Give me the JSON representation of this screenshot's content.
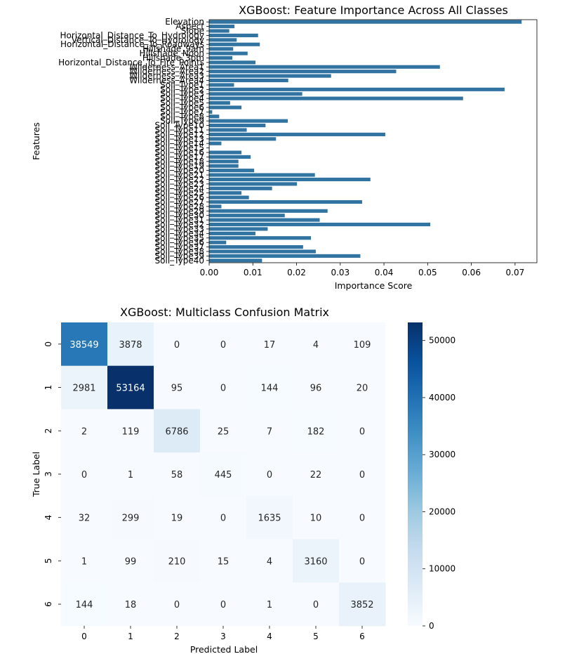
{
  "chart_data": [
    {
      "type": "bar",
      "orientation": "horizontal",
      "title": "XGBoost: Feature Importance Across All Classes",
      "xlabel": "Importance Score",
      "ylabel": "Features",
      "xlim": [
        0.0,
        0.075
      ],
      "xticks": [
        "0.00",
        "0.01",
        "0.02",
        "0.03",
        "0.04",
        "0.05",
        "0.06",
        "0.07"
      ],
      "bar_color": "#3274a1",
      "categories": [
        "Elevation",
        "Aspect",
        "Slope",
        "Horizontal_Distance_To_Hydrology",
        "Vertical_Distance_To_Hydrology",
        "Horizontal_Distance_To_Roadways",
        "Hillshade_9am",
        "Hillshade_Noon",
        "Hillshade_3pm",
        "Horizontal_Distance_To_Fire_Points",
        "Wilderness_Area1",
        "Wilderness_Area2",
        "Wilderness_Area3",
        "Wilderness_Area4",
        "Soil_Type1",
        "Soil_Type2",
        "Soil_Type3",
        "Soil_Type4",
        "Soil_Type5",
        "Soil_Type6",
        "Soil_Type7",
        "Soil_Type8",
        "Soil_Type9",
        "Soil_Type10",
        "Soil_Type11",
        "Soil_Type12",
        "Soil_Type13",
        "Soil_Type14",
        "Soil_Type15",
        "Soil_Type16",
        "Soil_Type17",
        "Soil_Type18",
        "Soil_Type19",
        "Soil_Type20",
        "Soil_Type21",
        "Soil_Type22",
        "Soil_Type23",
        "Soil_Type24",
        "Soil_Type25",
        "Soil_Type26",
        "Soil_Type27",
        "Soil_Type28",
        "Soil_Type29",
        "Soil_Type30",
        "Soil_Type31",
        "Soil_Type32",
        "Soil_Type33",
        "Soil_Type34",
        "Soil_Type35",
        "Soil_Type36",
        "Soil_Type37",
        "Soil_Type38",
        "Soil_Type39",
        "Soil_Type40"
      ],
      "values": [
        0.0715,
        0.0058,
        0.0046,
        0.0112,
        0.0063,
        0.0116,
        0.0055,
        0.0088,
        0.0053,
        0.0106,
        0.0528,
        0.0428,
        0.0279,
        0.0181,
        0.0057,
        0.0676,
        0.0213,
        0.0581,
        0.0048,
        0.0074,
        0.0007,
        0.0023,
        0.018,
        0.0129,
        0.0086,
        0.0403,
        0.0153,
        0.0028,
        0.0001,
        0.0074,
        0.0095,
        0.0067,
        0.0067,
        0.0103,
        0.0242,
        0.0369,
        0.0201,
        0.0144,
        0.0074,
        0.0091,
        0.035,
        0.0028,
        0.0271,
        0.0173,
        0.0253,
        0.0506,
        0.0134,
        0.0106,
        0.0233,
        0.0039,
        0.0215,
        0.0244,
        0.0346,
        0.0121
      ]
    },
    {
      "type": "heatmap",
      "title": "XGBoost: Multiclass Confusion Matrix",
      "xlabel": "Predicted Label",
      "ylabel": "True Label",
      "x_categories": [
        "0",
        "1",
        "2",
        "3",
        "4",
        "5",
        "6"
      ],
      "y_categories": [
        "0",
        "1",
        "2",
        "3",
        "4",
        "5",
        "6"
      ],
      "colormap": "Blues",
      "vmin": 0,
      "vmax": 53164,
      "colorbar_ticks": [
        "0",
        "10000",
        "20000",
        "30000",
        "40000",
        "50000"
      ],
      "matrix": [
        [
          38549,
          3878,
          0,
          0,
          17,
          4,
          109
        ],
        [
          2981,
          53164,
          95,
          0,
          144,
          96,
          20
        ],
        [
          2,
          119,
          6786,
          25,
          7,
          182,
          0
        ],
        [
          0,
          1,
          58,
          445,
          0,
          22,
          0
        ],
        [
          32,
          299,
          19,
          0,
          1635,
          10,
          0
        ],
        [
          1,
          99,
          210,
          15,
          4,
          3160,
          0
        ],
        [
          144,
          18,
          0,
          0,
          1,
          0,
          3852
        ]
      ]
    }
  ]
}
